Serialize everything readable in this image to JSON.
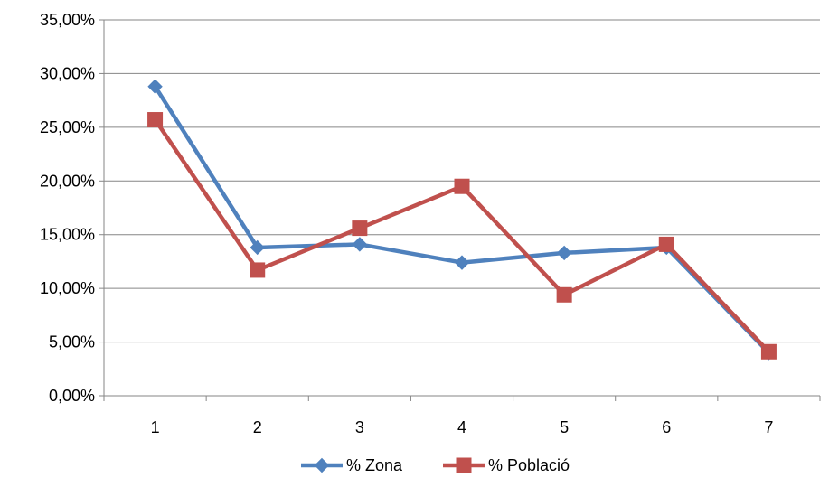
{
  "chart_data": {
    "type": "line",
    "title": "",
    "xlabel": "",
    "ylabel": "",
    "categories": [
      "1",
      "2",
      "3",
      "4",
      "5",
      "6",
      "7"
    ],
    "ylim": [
      0,
      0.35
    ],
    "y_ticks": [
      0,
      0.05,
      0.1,
      0.15,
      0.2,
      0.25,
      0.3,
      0.35
    ],
    "y_tick_labels": [
      "0,00%",
      "5,00%",
      "10,00%",
      "15,00%",
      "20,00%",
      "25,00%",
      "30,00%",
      "35,00%"
    ],
    "grid": "horizontal",
    "legend_position": "bottom",
    "series": [
      {
        "name": "% Zona",
        "color": "#4F81BD",
        "marker": "diamond",
        "values": [
          0.288,
          0.138,
          0.141,
          0.124,
          0.133,
          0.138,
          0.04
        ]
      },
      {
        "name": "% Població",
        "color": "#C0504D",
        "marker": "square",
        "values": [
          0.257,
          0.117,
          0.156,
          0.195,
          0.094,
          0.141,
          0.041
        ]
      }
    ]
  }
}
